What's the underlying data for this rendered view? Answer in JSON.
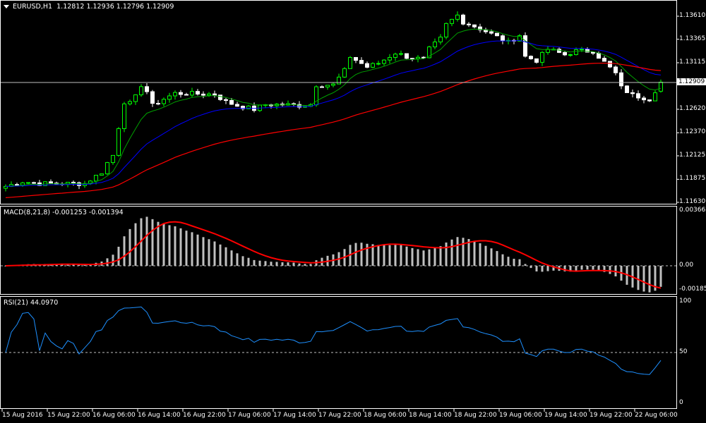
{
  "header": {
    "symbol": "EURUSD,H1",
    "open": "1.12812",
    "high": "1.12936",
    "low": "1.12796",
    "close": "1.12909"
  },
  "price_axis": [
    "1.13610",
    "1.13365",
    "1.13115",
    "1.12620",
    "1.12370",
    "1.12125",
    "1.11875",
    "1.11630"
  ],
  "price_axis_values": [
    1.1361,
    1.13365,
    1.13115,
    1.1262,
    1.1237,
    1.12125,
    1.11875,
    1.1163
  ],
  "current_price": "1.12909",
  "macd": {
    "label": "MACD(8,21,8) -0.001253 -0.001394",
    "axis": [
      "0.003662",
      "0.00",
      "-0.001858"
    ]
  },
  "rsi": {
    "label": "RSI(21) 44.0970",
    "axis": [
      "100",
      "50",
      "0"
    ],
    "period": 21
  },
  "time_axis": [
    "15 Aug 2016",
    "15 Aug 22:00",
    "16 Aug 06:00",
    "16 Aug 14:00",
    "16 Aug 22:00",
    "17 Aug 06:00",
    "17 Aug 14:00",
    "17 Aug 22:00",
    "18 Aug 06:00",
    "18 Aug 14:00",
    "18 Aug 22:00",
    "19 Aug 06:00",
    "19 Aug 14:00",
    "19 Aug 22:00",
    "22 Aug 06:00"
  ],
  "colors": {
    "bull": "#00ff00",
    "bear": "#ffffff",
    "ma_fast": "#00a000",
    "ma_mid": "#0000ff",
    "ma_slow": "#ff0000",
    "macd_hist": "#c0c0c0",
    "macd_signal": "#ff0000",
    "rsi": "#1e90ff"
  },
  "chart_data": {
    "type": "candlestick",
    "bars": 117,
    "close_keypoints": [
      [
        0,
        1.118
      ],
      [
        3,
        1.1185
      ],
      [
        6,
        1.1183
      ],
      [
        14,
        1.1183
      ],
      [
        15,
        1.1187
      ],
      [
        17,
        1.1195
      ],
      [
        18,
        1.1205
      ],
      [
        19,
        1.1213
      ],
      [
        20,
        1.1243
      ],
      [
        21,
        1.127
      ],
      [
        22,
        1.1268
      ],
      [
        23,
        1.1275
      ],
      [
        24,
        1.1288
      ],
      [
        25,
        1.1281
      ],
      [
        26,
        1.1266
      ],
      [
        28,
        1.1273
      ],
      [
        30,
        1.1279
      ],
      [
        37,
        1.1278
      ],
      [
        39,
        1.127
      ],
      [
        41,
        1.1266
      ],
      [
        44,
        1.1262
      ],
      [
        46,
        1.1267
      ],
      [
        49,
        1.1267
      ],
      [
        52,
        1.1266
      ],
      [
        54,
        1.1267
      ],
      [
        55,
        1.1288
      ],
      [
        58,
        1.1288
      ],
      [
        60,
        1.1303
      ],
      [
        61,
        1.1318
      ],
      [
        64,
        1.1307
      ],
      [
        66,
        1.1311
      ],
      [
        69,
        1.1322
      ],
      [
        71,
        1.1318
      ],
      [
        74,
        1.1315
      ],
      [
        75,
        1.1326
      ],
      [
        77,
        1.1337
      ],
      [
        78,
        1.1352
      ],
      [
        80,
        1.1362
      ],
      [
        81,
        1.1355
      ],
      [
        84,
        1.1348
      ],
      [
        86,
        1.1342
      ],
      [
        89,
        1.1333
      ],
      [
        91,
        1.1341
      ],
      [
        92,
        1.1318
      ],
      [
        94,
        1.1314
      ],
      [
        96,
        1.1326
      ],
      [
        99,
        1.132
      ],
      [
        101,
        1.1324
      ],
      [
        104,
        1.1324
      ],
      [
        106,
        1.1312
      ],
      [
        108,
        1.13
      ],
      [
        109,
        1.1285
      ],
      [
        111,
        1.1277
      ],
      [
        114,
        1.1273
      ],
      [
        116,
        1.12909
      ]
    ],
    "last_bar": {
      "open": 1.12812,
      "high": 1.12936,
      "low": 1.12796,
      "close": 1.12909
    },
    "ylim": [
      1.1163,
      1.1361
    ],
    "macd_range": [
      -0.001858,
      0.003662
    ]
  }
}
